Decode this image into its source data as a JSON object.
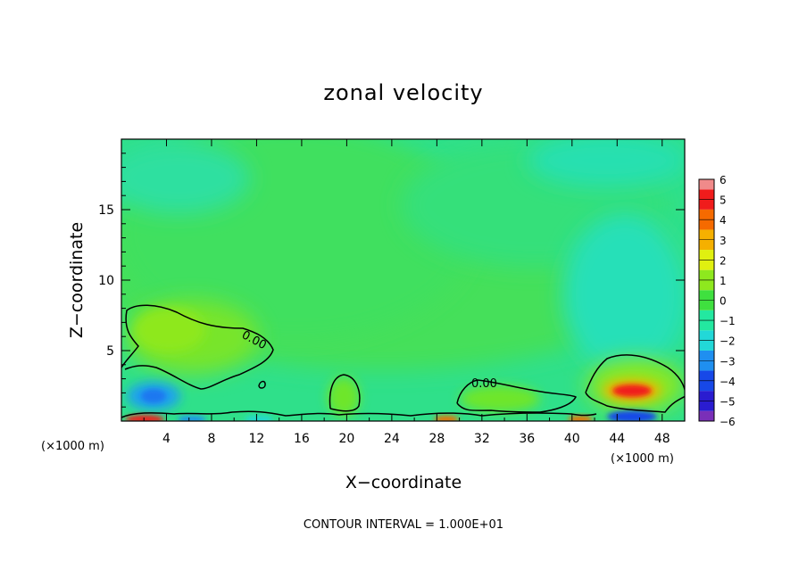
{
  "chart_data": {
    "type": "heatmap",
    "title": "zonal velocity",
    "xlabel": "X−coordinate",
    "ylabel": "Z−coordinate",
    "x_unit_left": "(×1000 m)",
    "x_unit_right": "(×1000 m)",
    "xlim": [
      0,
      50
    ],
    "ylim": [
      0,
      20
    ],
    "x_ticks": [
      4,
      8,
      12,
      16,
      20,
      24,
      28,
      32,
      36,
      40,
      44,
      48
    ],
    "y_ticks": [
      5,
      10,
      15
    ],
    "colorbar": {
      "levels": [
        -6,
        -5,
        -4,
        -3,
        -2,
        -1,
        0,
        1,
        2,
        3,
        4,
        5,
        6
      ],
      "labels": [
        "6",
        "5",
        "4",
        "3",
        "2",
        "1",
        "0",
        "−1",
        "−2",
        "−3",
        "−4",
        "−5",
        "−6"
      ],
      "colors": [
        "#7a2fb8",
        "#2a1cd0",
        "#1748e8",
        "#1f8ff0",
        "#22d8d8",
        "#23e8a0",
        "#3fe03f",
        "#8ee81e",
        "#e0f010",
        "#f5b000",
        "#f56a00",
        "#f01c1c",
        "#f08a8a"
      ]
    },
    "contour_labels": [
      "0.00",
      "0.00"
    ],
    "background_value": -0.3,
    "features": [
      {
        "kind": "positive",
        "x": 5,
        "z": 5.5,
        "value": 0.7
      },
      {
        "kind": "negative",
        "x": 3,
        "z": 1.8,
        "value": -2.8
      },
      {
        "kind": "positive",
        "x": 19.5,
        "z": 2.0,
        "value": 0.5
      },
      {
        "kind": "positive",
        "x": 33,
        "z": 1.8,
        "value": 0.5
      },
      {
        "kind": "positive",
        "x": 45,
        "z": 2.0,
        "value": 4.3
      },
      {
        "kind": "negative",
        "x": 45,
        "z": 0.3,
        "value": -4.6
      },
      {
        "kind": "positive",
        "x": 2.5,
        "z": 0.3,
        "value": 4.0
      },
      {
        "kind": "positive",
        "x": 40.5,
        "z": 0.3,
        "value": 3.5
      }
    ],
    "annotation": "CONTOUR INTERVAL = 1.000E+01"
  }
}
